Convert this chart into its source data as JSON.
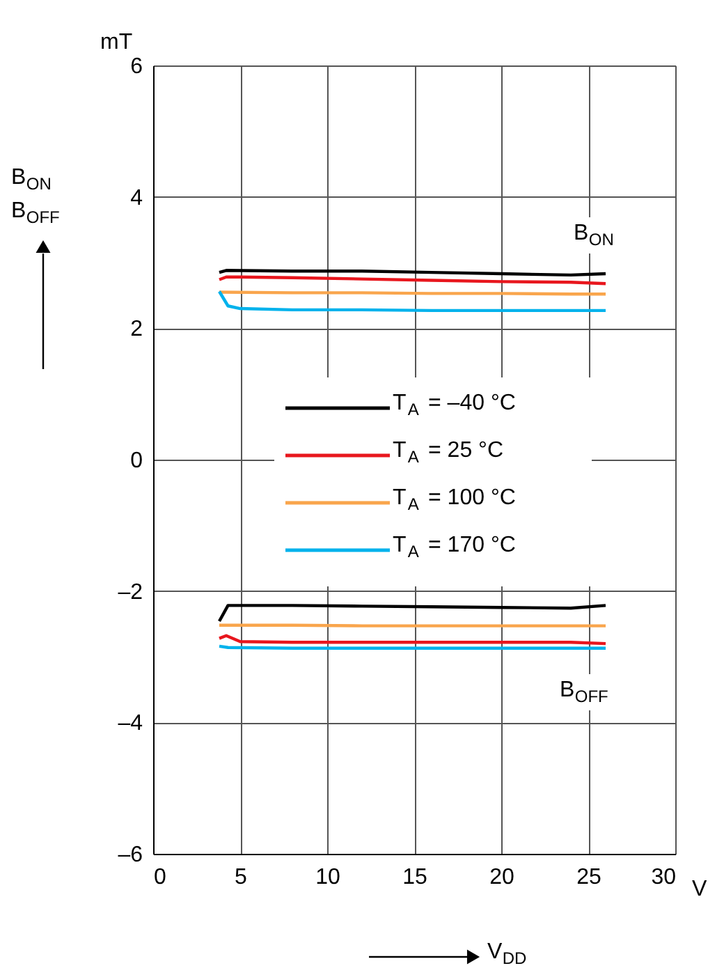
{
  "chart_data": {
    "type": "line",
    "xlabel": "V$_{DD}$",
    "ylabel": "B$_{ON}$ B$_{OFF}$",
    "annotations": [
      "B$_{ON}$",
      "B$_{OFF}$",
      "mT",
      "V"
    ],
    "series": [
      {
        "name": "T$_{A}$ = –40 °C",
        "color": "#000000",
        "x": [
          3.8,
          4.2,
          8,
          12,
          16,
          20,
          24,
          26
        ],
        "values": [
          2.85,
          2.88,
          2.87,
          2.87,
          2.85,
          2.83,
          2.81,
          2.83
        ]
      },
      {
        "name": "T$_{A}$ = 25 °C",
        "color": "#e8161d",
        "x": [
          3.8,
          4.2,
          5,
          8,
          12,
          16,
          20,
          24,
          26
        ],
        "values": [
          2.74,
          2.78,
          2.78,
          2.77,
          2.75,
          2.73,
          2.71,
          2.7,
          2.68
        ]
      },
      {
        "name": "T$_{A}$ = 100 °C",
        "color": "#f9a54c",
        "x": [
          3.8,
          8,
          12,
          16,
          20,
          24,
          26
        ],
        "values": [
          2.55,
          2.54,
          2.54,
          2.53,
          2.53,
          2.52,
          2.52
        ]
      },
      {
        "name": "T$_{A}$ = 170 °C",
        "color": "#00b2ec",
        "x": [
          3.8,
          4.3,
          5,
          8,
          12,
          16,
          20,
          24,
          26
        ],
        "values": [
          2.56,
          2.34,
          2.3,
          2.28,
          2.28,
          2.27,
          2.27,
          2.27,
          2.27
        ]
      },
      {
        "color": "#000000",
        "x": [
          3.8,
          4.3,
          8,
          12,
          16,
          20,
          24,
          26
        ],
        "values": [
          -2.46,
          -2.22,
          -2.22,
          -2.23,
          -2.24,
          -2.25,
          -2.26,
          -2.22
        ]
      },
      {
        "color": "#e8161d",
        "x": [
          3.8,
          4.2,
          5,
          8,
          12,
          16,
          20,
          24,
          26
        ],
        "values": [
          -2.72,
          -2.68,
          -2.77,
          -2.78,
          -2.78,
          -2.78,
          -2.78,
          -2.78,
          -2.8
        ]
      },
      {
        "color": "#f9a54c",
        "x": [
          3.8,
          8,
          12,
          16,
          20,
          24,
          26
        ],
        "values": [
          -2.52,
          -2.52,
          -2.53,
          -2.53,
          -2.53,
          -2.53,
          -2.53
        ]
      },
      {
        "color": "#00b2ec",
        "x": [
          3.8,
          4.3,
          8,
          12,
          16,
          20,
          24,
          26
        ],
        "values": [
          -2.84,
          -2.86,
          -2.87,
          -2.87,
          -2.87,
          -2.87,
          -2.87,
          -2.87
        ]
      }
    ],
    "xlim": [
      0,
      30
    ],
    "xticks": [
      0,
      5,
      10,
      15,
      20,
      25,
      30
    ],
    "ylim": [
      -6,
      6
    ],
    "yticks": [
      {
        "value": -6,
        "label": "–6"
      },
      {
        "value": -4,
        "label": "–4"
      },
      {
        "value": -2,
        "label": "–2"
      },
      0,
      2,
      4,
      6
    ],
    "grid": true,
    "legend": "center",
    "marker": "none",
    "line_style": "solid"
  }
}
